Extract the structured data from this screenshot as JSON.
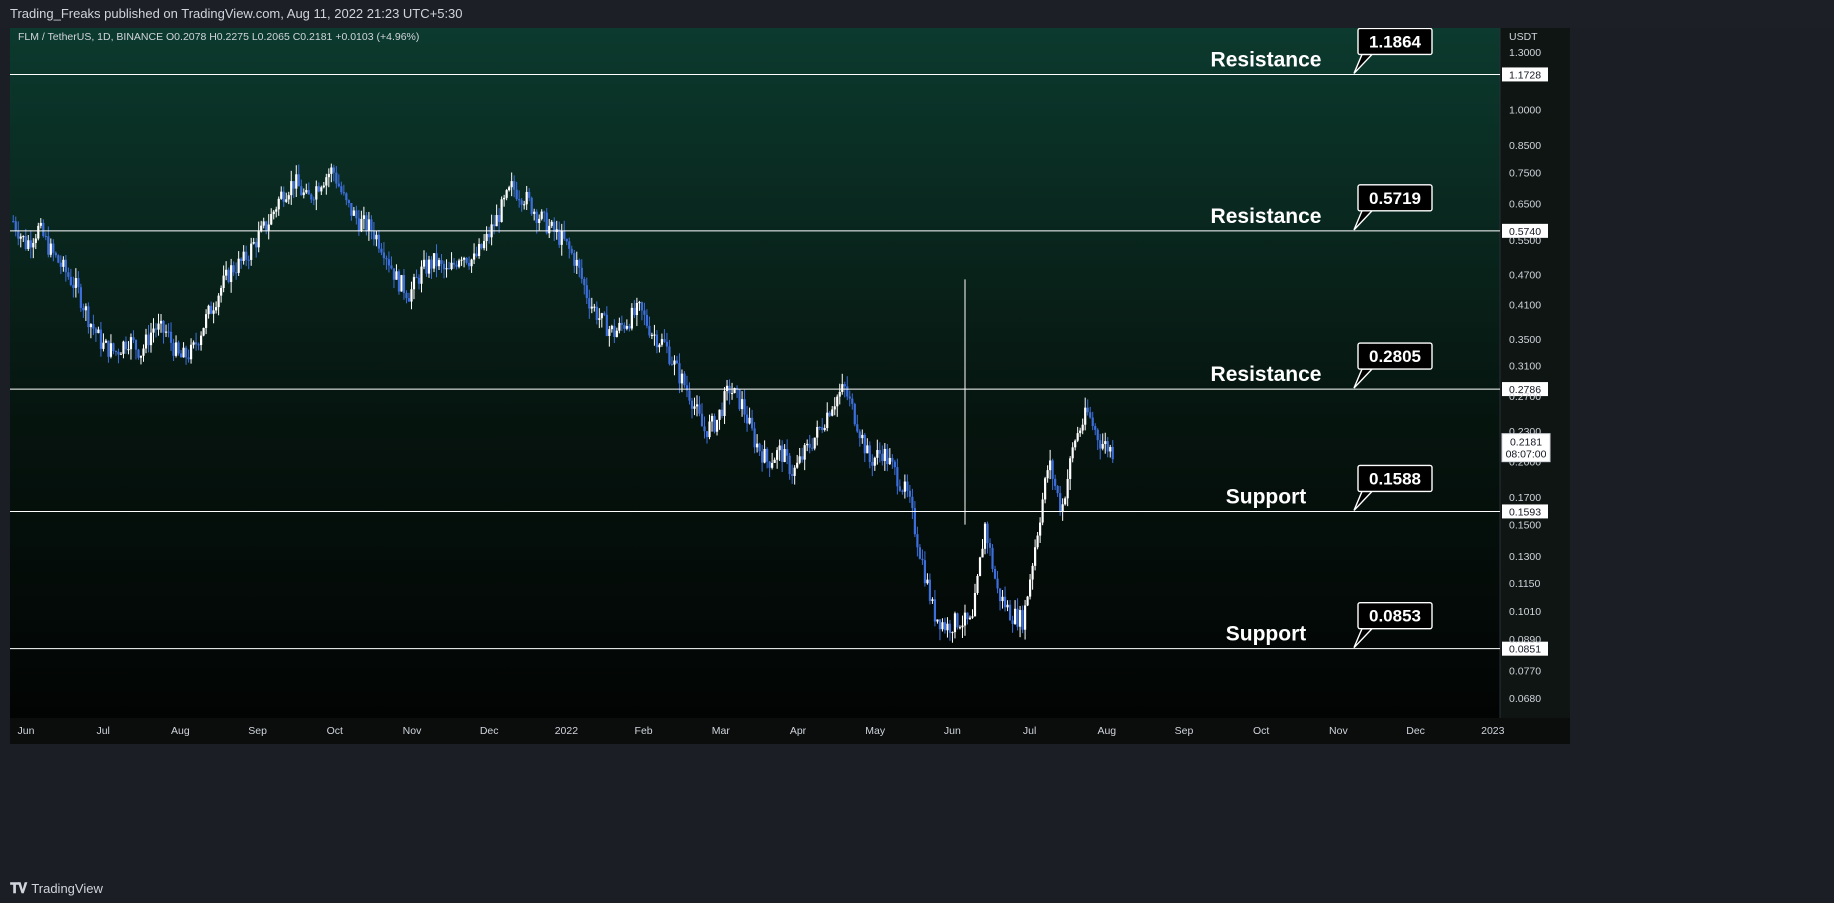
{
  "header": {
    "publisher": "Trading_Freaks published on TradingView.com, Aug 11, 2022 21:23 UTC+5:30"
  },
  "footer": {
    "brand": "TradingView",
    "logo_icon": "tradingview-logo-icon"
  },
  "colors": {
    "bg_top": "#0c3a2e",
    "bg_bottom": "#020403",
    "candle": "#3d6fdc",
    "candle_alt": "#ffffff",
    "line": "#ffffff"
  },
  "chart_data": {
    "type": "candlestick",
    "symbol_info": "FLM / TetherUS, 1D, BINANCE  O0.2078  H0.2275  L0.2065  C0.2181  +0.0103 (+4.96%)",
    "currency_label": "USDT",
    "y_scale": "log",
    "ylim": [
      0.062,
      1.45
    ],
    "y_ticks": [
      "1.3000",
      "1.0000",
      "0.8500",
      "0.7500",
      "0.6500",
      "0.5500",
      "0.4700",
      "0.4100",
      "0.3500",
      "0.3100",
      "0.2700",
      "0.2300",
      "0.2000",
      "0.1700",
      "0.1500",
      "0.1300",
      "0.1150",
      "0.1010",
      "0.0890",
      "0.0770",
      "0.0680"
    ],
    "x_labels": [
      "Jun",
      "Jul",
      "Aug",
      "Sep",
      "Oct",
      "Nov",
      "Dec",
      "2022",
      "Feb",
      "Mar",
      "Apr",
      "May",
      "Jun",
      "Jul",
      "Aug",
      "Sep",
      "Oct",
      "Nov",
      "Dec",
      "2023"
    ],
    "levels": [
      {
        "name": "Resistance",
        "value": 1.1728,
        "callout": "1.1864",
        "axis_label": "1.1728"
      },
      {
        "name": "Resistance",
        "value": 0.574,
        "callout": "0.5719",
        "axis_label": "0.5740"
      },
      {
        "name": "Resistance",
        "value": 0.2786,
        "callout": "0.2805",
        "axis_label": "0.2786"
      },
      {
        "name": "Support",
        "value": 0.1593,
        "callout": "0.1588",
        "axis_label": "0.1593"
      },
      {
        "name": "Support",
        "value": 0.0851,
        "callout": "0.0853",
        "axis_label": "0.0851"
      }
    ],
    "last_price": {
      "value": 0.2181,
      "label": "0.2181",
      "countdown": "08:07:00"
    },
    "price_path": [
      0.6,
      0.54,
      0.58,
      0.52,
      0.48,
      0.44,
      0.38,
      0.34,
      0.33,
      0.35,
      0.33,
      0.37,
      0.36,
      0.32,
      0.33,
      0.38,
      0.43,
      0.48,
      0.5,
      0.55,
      0.6,
      0.68,
      0.72,
      0.66,
      0.72,
      0.76,
      0.65,
      0.6,
      0.58,
      0.53,
      0.46,
      0.43,
      0.48,
      0.5,
      0.47,
      0.52,
      0.5,
      0.55,
      0.62,
      0.7,
      0.67,
      0.62,
      0.58,
      0.55,
      0.5,
      0.42,
      0.38,
      0.36,
      0.38,
      0.4,
      0.36,
      0.34,
      0.3,
      0.27,
      0.23,
      0.24,
      0.28,
      0.26,
      0.22,
      0.2,
      0.21,
      0.19,
      0.21,
      0.23,
      0.26,
      0.28,
      0.24,
      0.2,
      0.21,
      0.19,
      0.17,
      0.13,
      0.1,
      0.094,
      0.097,
      0.095,
      0.15,
      0.11,
      0.1,
      0.097,
      0.14,
      0.2,
      0.16,
      0.22,
      0.25,
      0.22,
      0.21
    ],
    "range_start": "2021-05-25",
    "range_end": "2022-08-11"
  }
}
